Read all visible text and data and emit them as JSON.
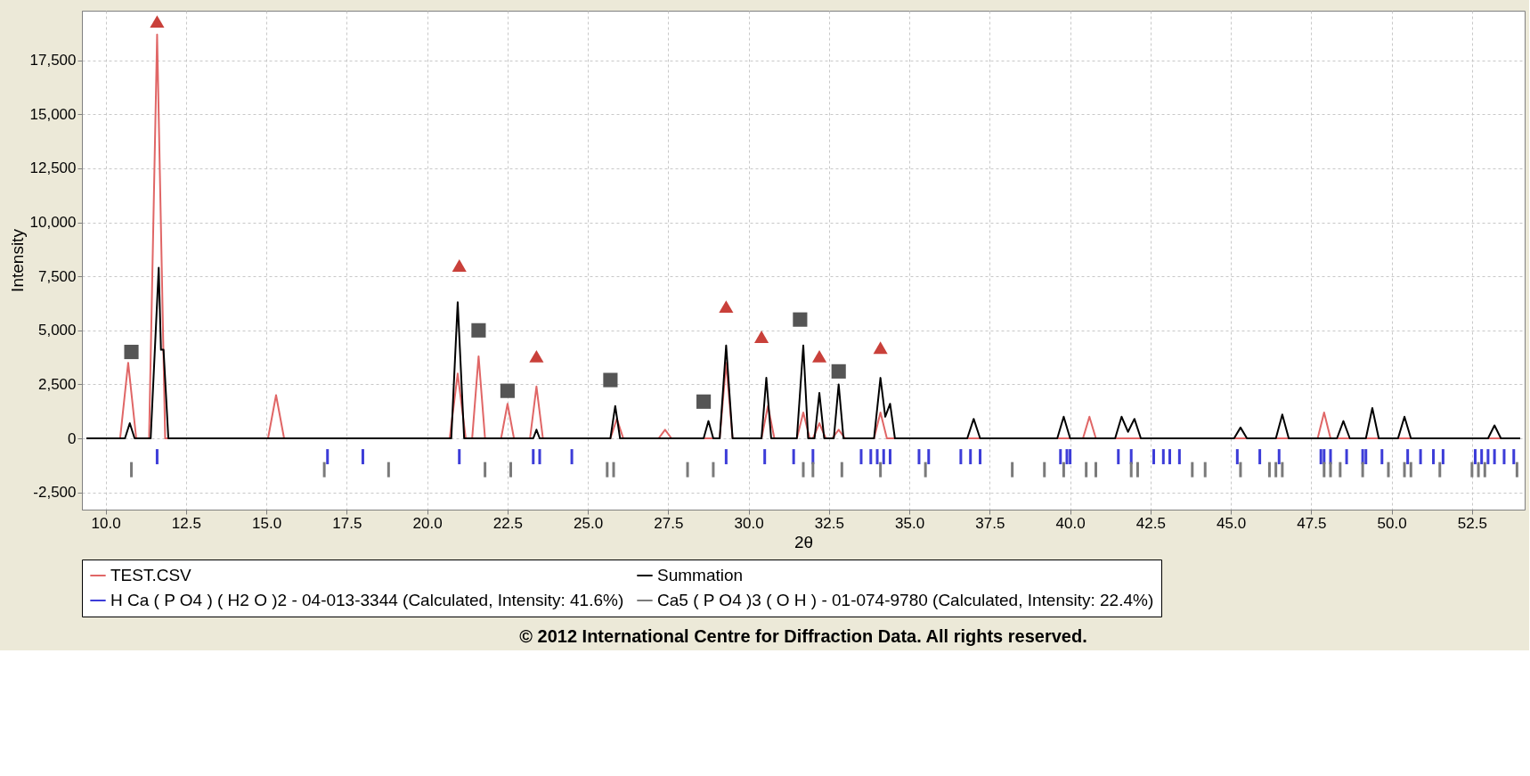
{
  "chart_data": {
    "type": "line",
    "xlabel": "2θ",
    "ylabel": "Intensity",
    "annotations": [
      "© 2012 International Centre for Diffraction Data. All rights reserved."
    ],
    "xlim": [
      9.4,
      54.0
    ],
    "ylim": [
      -3300,
      19800
    ],
    "xticks": [
      {
        "value": 10,
        "label": "10.0"
      },
      12.5,
      {
        "value": 15,
        "label": "15.0"
      },
      17.5,
      {
        "value": 20,
        "label": "20.0"
      },
      22.5,
      {
        "value": 25,
        "label": "25.0"
      },
      27.5,
      {
        "value": 30,
        "label": "30.0"
      },
      32.5,
      {
        "value": 35,
        "label": "35.0"
      },
      37.5,
      {
        "value": 40,
        "label": "40.0"
      },
      42.5,
      {
        "value": 45,
        "label": "45.0"
      },
      47.5,
      {
        "value": 50,
        "label": "50.0"
      },
      52.5
    ],
    "yticks": [
      {
        "value": -2500,
        "label": "-2,500"
      },
      0,
      {
        "value": 2500,
        "label": "2,500"
      },
      {
        "value": 5000,
        "label": "5,000"
      },
      {
        "value": 7500,
        "label": "7,500"
      },
      {
        "value": 10000,
        "label": "10,000"
      },
      {
        "value": 12500,
        "label": "12,500"
      },
      {
        "value": 15000,
        "label": "15,000"
      },
      {
        "value": 17500,
        "label": "17,500"
      }
    ],
    "grid": true,
    "legend": "bottom",
    "series": [
      {
        "name": "TEST.CSV",
        "color": "#e06666",
        "x": [
          9.4,
          10.45,
          10.7,
          10.95,
          11.35,
          11.6,
          11.85,
          15.05,
          15.3,
          15.55,
          20.7,
          20.95,
          21.2,
          21.4,
          21.6,
          21.8,
          22.3,
          22.5,
          22.7,
          23.2,
          23.4,
          23.6,
          25.7,
          25.9,
          26.1,
          27.2,
          27.4,
          27.6,
          29.1,
          29.3,
          29.5,
          30.4,
          30.6,
          30.8,
          31.5,
          31.7,
          31.9,
          32.0,
          32.2,
          32.4,
          32.6,
          32.8,
          33.0,
          33.9,
          34.1,
          34.3,
          40.4,
          40.6,
          40.8,
          47.7,
          47.9,
          48.1,
          54.0
        ],
        "values": [
          0,
          0,
          3500,
          0,
          0,
          18700,
          0,
          0,
          2000,
          0,
          0,
          3000,
          0,
          0,
          3800,
          0,
          0,
          1600,
          0,
          0,
          2400,
          0,
          0,
          900,
          0,
          0,
          400,
          0,
          0,
          3500,
          0,
          0,
          1500,
          0,
          0,
          1200,
          0,
          0,
          700,
          0,
          0,
          400,
          0,
          0,
          1200,
          0,
          0,
          1000,
          0,
          0,
          1200,
          0,
          0
        ]
      },
      {
        "name": "Summation",
        "color": "#000000",
        "x": [
          9.4,
          10.6,
          10.75,
          10.9,
          11.4,
          11.65,
          11.72,
          11.8,
          11.95,
          20.75,
          20.95,
          21.15,
          23.3,
          23.4,
          23.5,
          25.7,
          25.85,
          26.0,
          28.6,
          28.75,
          28.9,
          29.1,
          29.3,
          29.5,
          30.4,
          30.55,
          30.7,
          31.5,
          31.7,
          31.85,
          32.05,
          32.2,
          32.35,
          32.65,
          32.8,
          32.95,
          33.9,
          34.1,
          34.25,
          34.4,
          34.55,
          36.8,
          37.0,
          37.2,
          39.6,
          39.8,
          40.0,
          41.4,
          41.6,
          41.8,
          42.0,
          42.2,
          45.1,
          45.3,
          45.5,
          46.4,
          46.6,
          46.8,
          48.3,
          48.5,
          48.7,
          49.2,
          49.4,
          49.6,
          50.2,
          50.4,
          50.6,
          53.0,
          53.2,
          53.4,
          54.0
        ],
        "values": [
          0,
          0,
          700,
          0,
          0,
          7900,
          4100,
          4100,
          0,
          0,
          6300,
          0,
          0,
          400,
          0,
          0,
          1500,
          0,
          0,
          800,
          0,
          0,
          4300,
          0,
          0,
          2800,
          0,
          0,
          4300,
          0,
          0,
          2100,
          0,
          0,
          2500,
          0,
          0,
          2800,
          1000,
          1600,
          0,
          0,
          900,
          0,
          0,
          1000,
          0,
          0,
          1000,
          300,
          900,
          0,
          0,
          500,
          0,
          0,
          1100,
          0,
          0,
          800,
          0,
          0,
          1400,
          0,
          0,
          1000,
          0,
          0,
          600,
          0,
          0
        ]
      },
      {
        "name": "H Ca ( P O4 ) ( H2 O )2 - 04-013-3344 (Calculated, Intensity: 41.6%)",
        "color": "#3c3cd8",
        "type": "bar",
        "x": [
          11.6,
          16.9,
          18.0,
          21.0,
          23.3,
          23.5,
          24.5,
          29.3,
          30.5,
          31.4,
          32.0,
          33.5,
          33.8,
          34.0,
          34.2,
          34.4,
          35.3,
          35.6,
          36.6,
          36.9,
          37.2,
          39.7,
          39.9,
          40.0,
          41.5,
          41.9,
          42.6,
          42.9,
          43.1,
          43.4,
          45.2,
          45.9,
          46.5,
          47.8,
          47.9,
          48.1,
          48.6,
          49.1,
          49.2,
          49.7,
          50.5,
          50.9,
          51.3,
          51.6,
          52.6,
          52.8,
          53.0,
          53.2,
          53.5,
          53.8
        ],
        "base": [
          -1200,
          -1200,
          -1200,
          -1200,
          -1200,
          -1200,
          -1200,
          -1200,
          -1200,
          -1200,
          -1200,
          -1200,
          -1200,
          -1200,
          -1200,
          -1200,
          -1200,
          -1200,
          -1200,
          -1200,
          -1200,
          -1200,
          -1200,
          -1200,
          -1200,
          -1200,
          -1200,
          -1200,
          -1200,
          -1200,
          -1200,
          -1200,
          -1200,
          -1200,
          -1200,
          -1200,
          -1200,
          -1200,
          -1200,
          -1200,
          -1200,
          -1200,
          -1200,
          -1200,
          -1200,
          -1200,
          -1200,
          -1200,
          -1200,
          -1200
        ],
        "values": [
          700,
          700,
          700,
          700,
          700,
          700,
          700,
          700,
          700,
          700,
          700,
          700,
          700,
          700,
          700,
          700,
          700,
          700,
          700,
          700,
          700,
          700,
          700,
          700,
          700,
          700,
          700,
          700,
          700,
          700,
          700,
          700,
          700,
          700,
          700,
          700,
          700,
          700,
          700,
          700,
          700,
          700,
          700,
          700,
          700,
          700,
          700,
          700,
          700,
          700
        ]
      },
      {
        "name": "Ca5 ( P O4 )3 ( O H ) - 01-074-9780 (Calculated, Intensity: 22.4%)",
        "color": "#7a7a7a",
        "type": "bar",
        "x": [
          10.8,
          16.8,
          18.8,
          21.8,
          22.6,
          25.6,
          25.8,
          28.1,
          28.9,
          31.7,
          32.0,
          32.9,
          34.1,
          35.5,
          38.2,
          39.2,
          39.8,
          40.5,
          40.8,
          41.9,
          42.1,
          43.8,
          44.2,
          45.3,
          46.2,
          46.4,
          46.6,
          47.9,
          48.1,
          48.4,
          49.1,
          49.9,
          50.4,
          50.6,
          51.5,
          52.5,
          52.7,
          52.9,
          53.9
        ],
        "base": [
          -1800,
          -1800,
          -1800,
          -1800,
          -1800,
          -1800,
          -1800,
          -1800,
          -1800,
          -1800,
          -1800,
          -1800,
          -1800,
          -1800,
          -1800,
          -1800,
          -1800,
          -1800,
          -1800,
          -1800,
          -1800,
          -1800,
          -1800,
          -1800,
          -1800,
          -1800,
          -1800,
          -1800,
          -1800,
          -1800,
          -1800,
          -1800,
          -1800,
          -1800,
          -1800,
          -1800,
          -1800,
          -1800,
          -1800
        ],
        "values": [
          700,
          700,
          700,
          700,
          700,
          700,
          700,
          700,
          700,
          700,
          700,
          700,
          700,
          700,
          700,
          700,
          700,
          700,
          700,
          700,
          700,
          700,
          700,
          700,
          700,
          700,
          700,
          700,
          700,
          700,
          700,
          700,
          700,
          700,
          700,
          700,
          700,
          700,
          700
        ]
      },
      {
        "color": "#c9403a",
        "type": "scatter",
        "marker": "triangle",
        "x": [
          11.6,
          21.0,
          23.4,
          29.3,
          30.4,
          32.2,
          34.1
        ],
        "values": [
          19300,
          8000,
          3800,
          6100,
          4700,
          3800,
          4200
        ]
      },
      {
        "color": "#555555",
        "type": "scatter",
        "marker": "square",
        "x": [
          10.8,
          21.6,
          22.5,
          25.7,
          28.6,
          31.6,
          32.8
        ],
        "values": [
          4000,
          5000,
          2200,
          2700,
          1700,
          5500,
          3100
        ]
      }
    ]
  }
}
